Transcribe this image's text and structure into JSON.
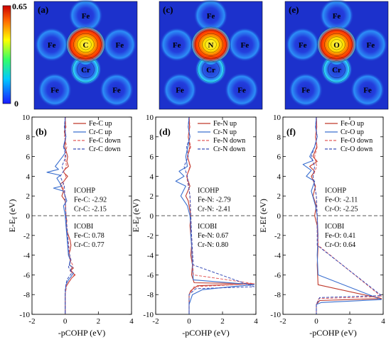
{
  "colorbar": {
    "max_label": "0.65",
    "min_label": "0",
    "colors": [
      "#1a1aff",
      "#00c8ff",
      "#33ff66",
      "#ffff00",
      "#ff6600",
      "#cc0000"
    ]
  },
  "colors": {
    "map_background": "#1c31cc",
    "halo": "#2fa0ff",
    "hot": "#ff2a00",
    "warm": "#ffe600",
    "up_line": "#c0392b",
    "up_line_2": "#3a6fcf",
    "dashed_red": "#e25c5c",
    "dashed_blue": "#3b4fb8",
    "zero_line": "#555555"
  },
  "maps": [
    {
      "label": "(a)",
      "atoms": {
        "top": "Fe",
        "left": "Fe",
        "right": "Fe",
        "center": "C",
        "lower": "Cr",
        "bottom_left": "Fe",
        "bottom_right": "Fe"
      }
    },
    {
      "label": "(c)",
      "atoms": {
        "top": "Fe",
        "left": "Fe",
        "right": "Fe",
        "center": "N",
        "lower": "Cr",
        "bottom_left": "Fe",
        "bottom_right": "Fe"
      }
    },
    {
      "label": "(e)",
      "atoms": {
        "top": "Fe",
        "left": "Fe",
        "right": "Fe",
        "center": "O",
        "lower": "Cr",
        "bottom_left": "Fe",
        "bottom_right": "Fe"
      }
    }
  ],
  "chart_data": [
    {
      "type": "line",
      "panel": "(b)",
      "xlabel": "-pCOHP (eV)",
      "ylabel": "E-E_f (eV)",
      "ylabel_main": "E-E",
      "ylabel_sub": "f",
      "ylabel_tail": " (eV)",
      "xlim": [
        -2,
        4
      ],
      "ylim": [
        -10,
        10
      ],
      "xticks": [
        "-2",
        "0",
        "2",
        "4"
      ],
      "yticks": [
        "10",
        "8",
        "6",
        "4",
        "2",
        "0",
        "-2",
        "-4",
        "-6",
        "-8",
        "-10"
      ],
      "legend": [
        "Fe-C up",
        "Cr-C up",
        "Fe-C down",
        "Cr-C down"
      ],
      "icohp_title": "ICOHP",
      "icohp_lines": [
        "Fe-C: -2.92",
        "Cr-C: -2.15"
      ],
      "icobi_title": "ICOBI",
      "icobi_lines": [
        "Fe-C: 0.78",
        "Cr-C: 0.77"
      ],
      "series": [
        {
          "name": "Fe-C up",
          "x": [
            0,
            0.02,
            -0.05,
            0.03,
            -0.02,
            0.15,
            0.1,
            0.2,
            0.05,
            -0.1,
            -0.05,
            0.15,
            -0.08,
            -0.3,
            -0.1,
            -0.2,
            0,
            0.05,
            0.1,
            0.05,
            0.1,
            0.2,
            0.3,
            0.35,
            0.3,
            0.2,
            0.35,
            0.25,
            0.5,
            0.3,
            0.6,
            0.4,
            0.2,
            0.05,
            0,
            0
          ],
          "y": [
            10,
            9,
            8.5,
            8,
            7,
            6,
            5.5,
            5,
            4.8,
            4.5,
            4.3,
            4,
            3.5,
            3.2,
            2.5,
            2,
            1.5,
            0,
            -0.5,
            -1,
            -1.5,
            -2,
            -2.5,
            -3,
            -3.5,
            -4,
            -4.5,
            -5,
            -5.3,
            -5.6,
            -6,
            -6.3,
            -6.8,
            -7.2,
            -8,
            -10
          ]
        },
        {
          "name": "Cr-C up",
          "x": [
            0,
            -0.03,
            0.04,
            -0.1,
            0.05,
            -0.15,
            -0.6,
            -0.4,
            -1.1,
            -0.3,
            -0.5,
            -0.2,
            -0.7,
            -0.1,
            0.1,
            -0.1,
            0,
            0.05,
            0.1,
            0.15,
            0.2,
            0.3,
            0.25,
            0.45,
            0.3,
            0.5,
            0.35,
            0.2,
            0.05,
            0,
            0
          ],
          "y": [
            10,
            9,
            8,
            7,
            6.5,
            6,
            5,
            4.7,
            4.4,
            4.1,
            3.8,
            3,
            2.8,
            2.5,
            1.5,
            1,
            0,
            -1,
            -2,
            -3,
            -4,
            -4.5,
            -5,
            -5.2,
            -5.5,
            -5.8,
            -6.2,
            -6.5,
            -7,
            -8,
            -10
          ]
        },
        {
          "name": "Fe-C down",
          "x": [
            0,
            0.05,
            -0.05,
            0.1,
            -0.02,
            0.08,
            -0.1,
            0.05,
            -0.15,
            0,
            0.05,
            0.15,
            0.25,
            0.3,
            0.45,
            0.35,
            0.55,
            0.3,
            0.1,
            0,
            0
          ],
          "y": [
            10,
            9,
            8,
            7,
            6,
            5,
            4.5,
            4,
            3,
            2,
            0,
            -2,
            -3.5,
            -4.5,
            -5,
            -5.5,
            -6,
            -6.5,
            -7,
            -8,
            -10
          ]
        },
        {
          "name": "Cr-C down",
          "x": [
            0,
            -0.05,
            0.05,
            -0.1,
            0.05,
            -0.2,
            -0.1,
            -0.3,
            -0.05,
            0.05,
            0.15,
            0.2,
            0.35,
            0.2,
            0.4,
            0.1,
            0,
            0
          ],
          "y": [
            10,
            9,
            8,
            7,
            6,
            5,
            4.5,
            4,
            3,
            0,
            -2,
            -3.5,
            -4.5,
            -5.2,
            -5.8,
            -6.5,
            -7.5,
            -10
          ]
        }
      ]
    },
    {
      "type": "line",
      "panel": "(d)",
      "xlabel": "-pCOHP (eV)",
      "ylabel": "E-E_f (eV)",
      "ylabel_main": "E-E",
      "ylabel_sub": "f",
      "ylabel_tail": " (eV)",
      "xlim": [
        -2,
        4
      ],
      "ylim": [
        -10,
        10
      ],
      "xticks": [
        "-2",
        "0",
        "2",
        "4"
      ],
      "yticks": [
        "10",
        "8",
        "6",
        "4",
        "2",
        "0",
        "-2",
        "-4",
        "-6",
        "-8",
        "-10"
      ],
      "legend": [
        "Fe-N up",
        "Cr-N up",
        "Fe-N down",
        "Cr-N down"
      ],
      "icohp_title": "ICOHP",
      "icohp_lines": [
        "Fe-N: -2.79",
        "Cr-N: -2.41"
      ],
      "icobi_title": "ICOBI",
      "icobi_lines": [
        "Fe-N: 0.67",
        "Cr-N: 0.80"
      ],
      "series": [
        {
          "name": "Fe-N up",
          "x": [
            0,
            0.03,
            -0.05,
            0.05,
            -0.1,
            0.08,
            -0.15,
            0.05,
            -0.2,
            -0.05,
            0.1,
            0.05,
            0.1,
            0.15,
            0.1,
            0.2,
            0.15,
            0.3,
            3.9,
            0.5,
            0.1,
            0,
            0
          ],
          "y": [
            10,
            9,
            8,
            7,
            6,
            5,
            4,
            3,
            2,
            1.5,
            0,
            -1,
            -2,
            -3,
            -4,
            -5,
            -6,
            -6.8,
            -6.9,
            -7.1,
            -7.6,
            -8,
            -10
          ]
        },
        {
          "name": "Cr-N up",
          "x": [
            0,
            -0.05,
            0.05,
            -0.2,
            -0.1,
            -0.6,
            -0.3,
            -0.8,
            -0.2,
            -0.5,
            -0.1,
            0.05,
            0.1,
            0.1,
            0.15,
            0.2,
            0.25,
            3.9,
            2.5,
            0.8,
            0.2,
            0,
            0
          ],
          "y": [
            10,
            9,
            8,
            6,
            5,
            4.5,
            4,
            3.5,
            3,
            2,
            1,
            0,
            -1,
            -2,
            -3,
            -5,
            -6.5,
            -7,
            -7.2,
            -7.5,
            -8,
            -9,
            -10
          ]
        },
        {
          "name": "Fe-N down",
          "x": [
            0,
            0.05,
            -0.05,
            0.1,
            -0.1,
            0.05,
            -0.15,
            0.05,
            0.1,
            0.15,
            0.2,
            0.25,
            3.9,
            0.3,
            0,
            0
          ],
          "y": [
            10,
            9,
            8,
            7,
            6,
            5,
            4,
            2,
            0,
            -2,
            -4,
            -6,
            -6.9,
            -7.2,
            -8,
            -10
          ]
        },
        {
          "name": "Cr-N down",
          "x": [
            0,
            -0.05,
            0.05,
            -0.15,
            -0.05,
            -0.3,
            -0.1,
            0.05,
            0.1,
            0.15,
            0.25,
            3.9,
            0.4,
            0,
            0
          ],
          "y": [
            10,
            9,
            8,
            7,
            6,
            5,
            4,
            2,
            0,
            -2,
            -5,
            -7.2,
            -7.4,
            -8,
            -10
          ]
        }
      ]
    },
    {
      "type": "line",
      "panel": "(f)",
      "xlabel": "-pCOHP (eV)",
      "ylabel": "E-Ef (eV)",
      "ylabel_main": "E-Ef",
      "ylabel_sub": "",
      "ylabel_tail": " (eV)",
      "xlim": [
        -2,
        4
      ],
      "ylim": [
        -10,
        10
      ],
      "xticks": [
        "-2",
        "0",
        "2",
        "4"
      ],
      "yticks": [
        "10",
        "8",
        "6",
        "4",
        "2",
        "0",
        "-2",
        "-4",
        "-6",
        "-8",
        "-10"
      ],
      "legend": [
        "Fe-O up",
        "Cr-O up",
        "Fe-O down",
        "Cr-O down"
      ],
      "icohp_title": "ICOHP",
      "icohp_lines": [
        "Fe-O: -2.11",
        "Cr-O: -2.25"
      ],
      "icobi_title": "ICOBI",
      "icobi_lines": [
        "Fe-O: 0.41",
        "Cr-O: 0.64"
      ],
      "series": [
        {
          "name": "Fe-O up",
          "x": [
            0,
            0.02,
            -0.05,
            0.03,
            -0.2,
            0.05,
            -0.4,
            -0.1,
            -0.3,
            -0.05,
            -0.2,
            0,
            -0.1,
            0.05,
            0.1,
            0.05,
            0.1,
            3.9,
            0.2,
            0,
            0
          ],
          "y": [
            10,
            9,
            8,
            7,
            6,
            5.5,
            5,
            4.5,
            4,
            3,
            2,
            1,
            0,
            -1,
            -3,
            -5,
            -7,
            -8.4,
            -8.6,
            -9,
            -10
          ]
        },
        {
          "name": "Cr-O up",
          "x": [
            0,
            -0.05,
            0.05,
            -0.1,
            -0.4,
            -0.2,
            -0.8,
            -0.3,
            -0.6,
            -0.1,
            -0.3,
            -0.05,
            0.05,
            0.1,
            0.05,
            0.1,
            3.9,
            0.3,
            0,
            0
          ],
          "y": [
            10,
            9,
            8,
            7,
            6,
            5.6,
            5.2,
            4.6,
            4,
            3.5,
            2.5,
            1,
            0,
            -2,
            -4,
            -6,
            -8.5,
            -8.8,
            -9,
            -10
          ]
        },
        {
          "name": "Fe-O down",
          "x": [
            0,
            0.03,
            -0.05,
            0.05,
            -0.1,
            0.02,
            -0.2,
            0,
            0.05,
            0.1,
            3.9,
            0.15,
            0,
            0
          ],
          "y": [
            10,
            9,
            8,
            7,
            6,
            5,
            4,
            2,
            0,
            -3,
            -8.2,
            -8.4,
            -9,
            -10
          ]
        },
        {
          "name": "Cr-O down",
          "x": [
            0,
            -0.03,
            0.05,
            -0.1,
            -0.3,
            -0.1,
            -0.2,
            0,
            0.05,
            0.05,
            3.9,
            0.2,
            0,
            0
          ],
          "y": [
            10,
            9,
            8,
            7,
            6,
            5,
            4,
            2,
            0,
            -3,
            -8.1,
            -8.3,
            -9,
            -10
          ]
        }
      ]
    }
  ]
}
